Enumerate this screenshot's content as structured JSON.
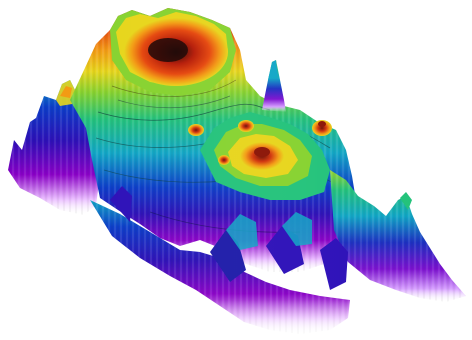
{
  "image": {
    "subject": "3d-terrain-surface",
    "background_color": "#ffffff",
    "colormap": [
      "#8a00c8",
      "#2c0fb8",
      "#0a3cc9",
      "#0fa6c6",
      "#22c27a",
      "#86d22e",
      "#e7d51a",
      "#f39a12",
      "#e5460c",
      "#b51a06",
      "#2a0602"
    ]
  }
}
